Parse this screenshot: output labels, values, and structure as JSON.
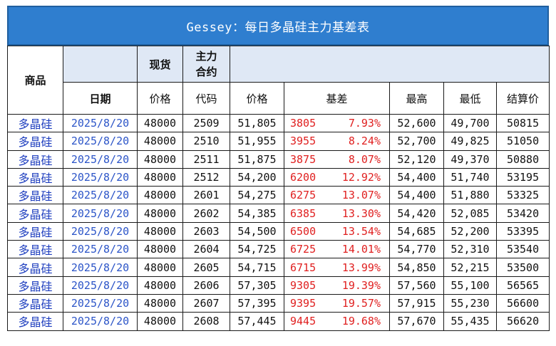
{
  "title": "Gessey：每日多晶硅主力基差表",
  "headers": {
    "product": "商品",
    "spot": "现货",
    "main_contract_line1": "主力",
    "main_contract_line2": "合约",
    "date": "日期",
    "spot_price": "价格",
    "code": "代码",
    "price": "价格",
    "basis": "基差",
    "high": "最高",
    "low": "最低",
    "settle": "结算价"
  },
  "rows": [
    {
      "product": "多晶硅",
      "date": "2025/8/20",
      "spot_price": "48000",
      "code": "2509",
      "price": "51,805",
      "basis": "3805",
      "basis_pct": "7.93%",
      "high": "52,600",
      "low": "49,700",
      "settle": "50815"
    },
    {
      "product": "多晶硅",
      "date": "2025/8/20",
      "spot_price": "48000",
      "code": "2510",
      "price": "51,955",
      "basis": "3955",
      "basis_pct": "8.24%",
      "high": "52,700",
      "low": "49,825",
      "settle": "51050"
    },
    {
      "product": "多晶硅",
      "date": "2025/8/20",
      "spot_price": "48000",
      "code": "2511",
      "price": "51,875",
      "basis": "3875",
      "basis_pct": "8.07%",
      "high": "52,120",
      "low": "49,370",
      "settle": "50880"
    },
    {
      "product": "多晶硅",
      "date": "2025/8/20",
      "spot_price": "48000",
      "code": "2512",
      "price": "54,200",
      "basis": "6200",
      "basis_pct": "12.92%",
      "high": "54,400",
      "low": "51,740",
      "settle": "53195"
    },
    {
      "product": "多晶硅",
      "date": "2025/8/20",
      "spot_price": "48000",
      "code": "2601",
      "price": "54,275",
      "basis": "6275",
      "basis_pct": "13.07%",
      "high": "54,400",
      "low": "51,880",
      "settle": "53325"
    },
    {
      "product": "多晶硅",
      "date": "2025/8/20",
      "spot_price": "48000",
      "code": "2602",
      "price": "54,385",
      "basis": "6385",
      "basis_pct": "13.30%",
      "high": "54,420",
      "low": "52,085",
      "settle": "53420"
    },
    {
      "product": "多晶硅",
      "date": "2025/8/20",
      "spot_price": "48000",
      "code": "2603",
      "price": "54,500",
      "basis": "6500",
      "basis_pct": "13.54%",
      "high": "54,685",
      "low": "52,200",
      "settle": "53395"
    },
    {
      "product": "多晶硅",
      "date": "2025/8/20",
      "spot_price": "48000",
      "code": "2604",
      "price": "54,725",
      "basis": "6725",
      "basis_pct": "14.01%",
      "high": "54,770",
      "low": "52,310",
      "settle": "53540"
    },
    {
      "product": "多晶硅",
      "date": "2025/8/20",
      "spot_price": "48000",
      "code": "2605",
      "price": "54,715",
      "basis": "6715",
      "basis_pct": "13.99%",
      "high": "54,850",
      "low": "52,215",
      "settle": "53500"
    },
    {
      "product": "多晶硅",
      "date": "2025/8/20",
      "spot_price": "48000",
      "code": "2606",
      "price": "57,305",
      "basis": "9305",
      "basis_pct": "19.39%",
      "high": "57,560",
      "low": "55,100",
      "settle": "56565"
    },
    {
      "product": "多晶硅",
      "date": "2025/8/20",
      "spot_price": "48000",
      "code": "2607",
      "price": "57,395",
      "basis": "9395",
      "basis_pct": "19.57%",
      "high": "57,915",
      "low": "55,230",
      "settle": "56600"
    },
    {
      "product": "多晶硅",
      "date": "2025/8/20",
      "spot_price": "48000",
      "code": "2608",
      "price": "57,445",
      "basis": "9445",
      "basis_pct": "19.68%",
      "high": "57,670",
      "low": "55,435",
      "settle": "56620"
    }
  ],
  "colors": {
    "title_bg": "#2f7ecf",
    "header_shade": "#dfe8f5",
    "product_text": "#1f3fbf",
    "date_text": "#2c55c8",
    "basis_text": "#e02020"
  }
}
